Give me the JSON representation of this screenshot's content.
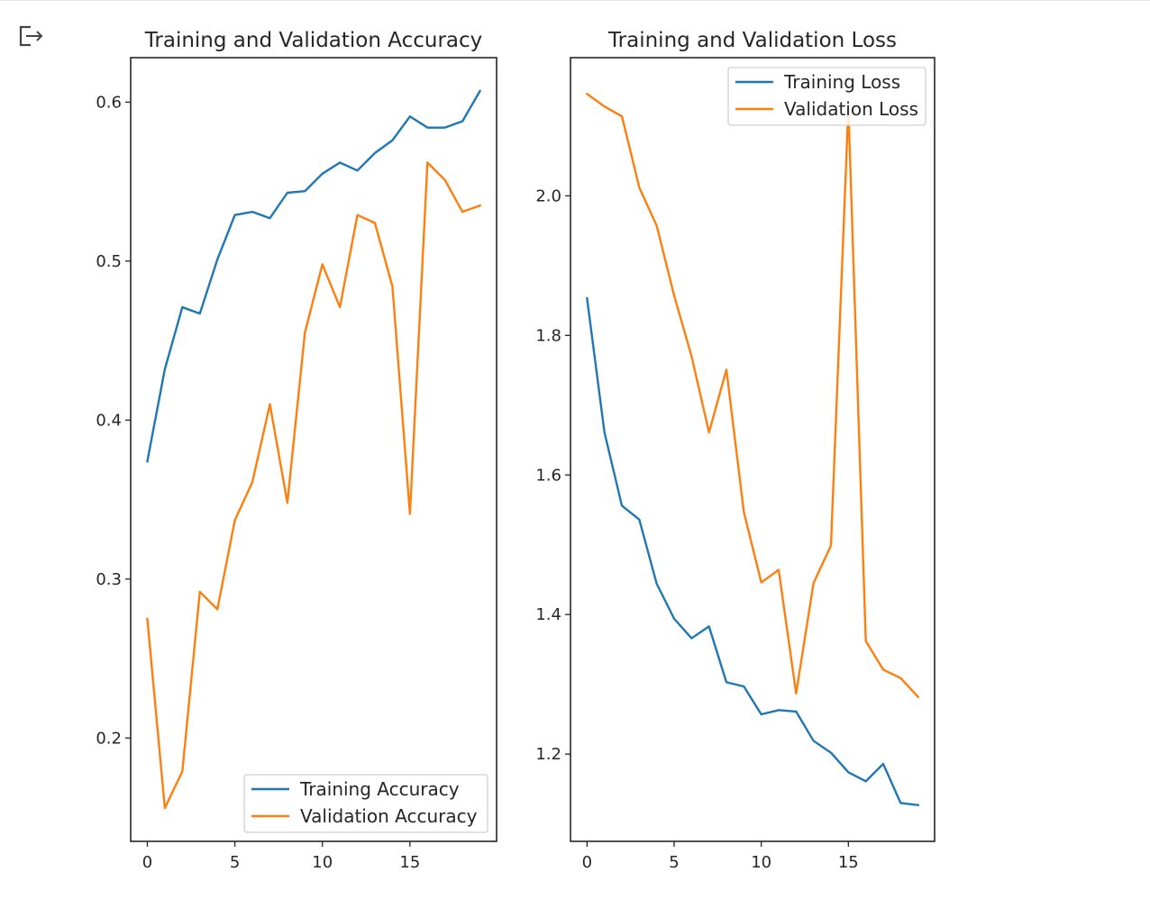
{
  "output_area": {
    "icon": "output-redirect-icon"
  },
  "chart_data": [
    {
      "type": "line",
      "title": "Training and Validation Accuracy",
      "xlabel": "",
      "ylabel": "",
      "x": [
        0,
        1,
        2,
        3,
        4,
        5,
        6,
        7,
        8,
        9,
        10,
        11,
        12,
        13,
        14,
        15,
        16,
        17,
        18,
        19
      ],
      "xlim": [
        -0.95,
        19.95
      ],
      "ylim": [
        0.135,
        0.628
      ],
      "xticks": [
        0,
        5,
        10,
        15
      ],
      "yticks": [
        0.2,
        0.3,
        0.4,
        0.5,
        0.6
      ],
      "xtick_labels": [
        "0",
        "5",
        "10",
        "15"
      ],
      "ytick_labels": [
        "0.2",
        "0.3",
        "0.4",
        "0.5",
        "0.6"
      ],
      "grid": false,
      "legend_position": "lower right",
      "series": [
        {
          "name": "Training Accuracy",
          "color": "#1f77b4",
          "values": [
            0.374,
            0.432,
            0.471,
            0.467,
            0.501,
            0.529,
            0.531,
            0.527,
            0.543,
            0.544,
            0.555,
            0.562,
            0.557,
            0.568,
            0.576,
            0.591,
            0.584,
            0.584,
            0.588,
            0.607
          ]
        },
        {
          "name": "Validation Accuracy",
          "color": "#ff7f0e",
          "values": [
            0.275,
            0.156,
            0.179,
            0.292,
            0.281,
            0.337,
            0.361,
            0.41,
            0.348,
            0.455,
            0.498,
            0.471,
            0.529,
            0.524,
            0.484,
            0.341,
            0.562,
            0.551,
            0.531,
            0.535
          ]
        }
      ]
    },
    {
      "type": "line",
      "title": "Training and Validation Loss",
      "xlabel": "",
      "ylabel": "",
      "x": [
        0,
        1,
        2,
        3,
        4,
        5,
        6,
        7,
        8,
        9,
        10,
        11,
        12,
        13,
        14,
        15,
        16,
        17,
        18,
        19
      ],
      "xlim": [
        -0.95,
        19.95
      ],
      "ylim": [
        1.075,
        2.198
      ],
      "xticks": [
        0,
        5,
        10,
        15
      ],
      "yticks": [
        1.2,
        1.4,
        1.6,
        1.8,
        2.0
      ],
      "xtick_labels": [
        "0",
        "5",
        "10",
        "15"
      ],
      "ytick_labels": [
        "1.2",
        "1.4",
        "1.6",
        "1.8",
        "2.0"
      ],
      "grid": false,
      "legend_position": "upper right",
      "series": [
        {
          "name": "Training Loss",
          "color": "#1f77b4",
          "values": [
            1.853,
            1.661,
            1.556,
            1.536,
            1.444,
            1.394,
            1.366,
            1.383,
            1.303,
            1.297,
            1.257,
            1.263,
            1.261,
            1.219,
            1.202,
            1.174,
            1.161,
            1.186,
            1.13,
            1.127
          ]
        },
        {
          "name": "Validation Loss",
          "color": "#ff7f0e",
          "values": [
            2.146,
            2.128,
            2.114,
            2.012,
            1.957,
            1.857,
            1.77,
            1.661,
            1.751,
            1.547,
            1.446,
            1.464,
            1.287,
            1.445,
            1.499,
            2.127,
            1.362,
            1.321,
            1.309,
            1.282
          ]
        }
      ]
    }
  ]
}
